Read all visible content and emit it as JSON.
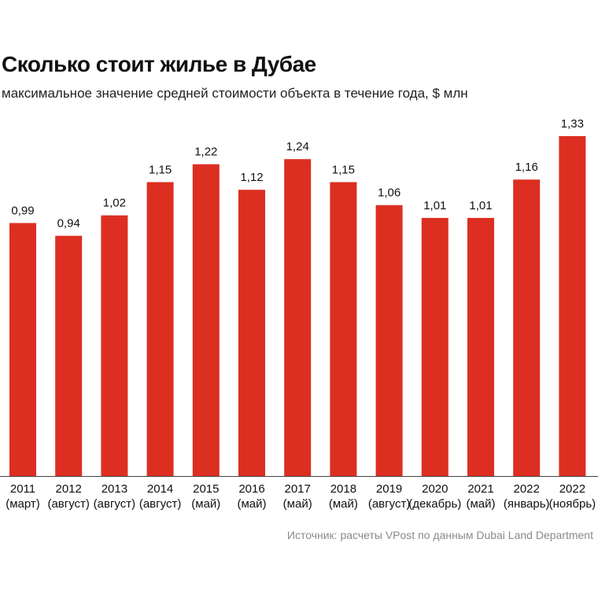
{
  "chart_data": {
    "type": "bar",
    "title": "Сколько стоит жилье в Дубае",
    "subtitle": "максимальное значение средней стоимости объекта в течение года, $ млн",
    "categories": [
      [
        "2011",
        "(март)"
      ],
      [
        "2012",
        "(август)"
      ],
      [
        "2013",
        "(август)"
      ],
      [
        "2014",
        "(август)"
      ],
      [
        "2015",
        "(май)"
      ],
      [
        "2016",
        "(май)"
      ],
      [
        "2017",
        "(май)"
      ],
      [
        "2018",
        "(май)"
      ],
      [
        "2019",
        "(август)"
      ],
      [
        "2020",
        "(декабрь)"
      ],
      [
        "2021",
        "(май)"
      ],
      [
        "2022",
        "(январь)"
      ],
      [
        "2022",
        "(ноябрь)"
      ]
    ],
    "values": [
      0.99,
      0.94,
      1.02,
      1.15,
      1.22,
      1.12,
      1.24,
      1.15,
      1.06,
      1.01,
      1.01,
      1.16,
      1.33
    ],
    "value_labels": [
      "0,99",
      "0,94",
      "1,02",
      "1,15",
      "1,22",
      "1,12",
      "1,24",
      "1,15",
      "1,06",
      "1,01",
      "1,01",
      "1,16",
      "1,33"
    ],
    "xlabel": "",
    "ylabel": "",
    "ylim": [
      0,
      1.33
    ],
    "grid": false,
    "bar_color": "#dc2f22",
    "source": "Источник: расчеты VPost по данным Dubai Land Department"
  }
}
